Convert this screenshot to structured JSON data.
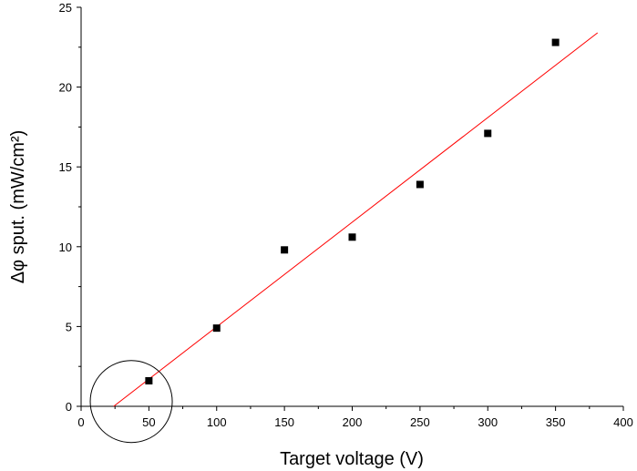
{
  "chart_data": {
    "type": "scatter",
    "xlabel": "Target voltage (V)",
    "ylabel": "Δφ sput. (mW/cm²)",
    "xlim": [
      0,
      400
    ],
    "ylim": [
      0,
      25
    ],
    "x_ticks": [
      0,
      50,
      100,
      150,
      200,
      250,
      300,
      350,
      400
    ],
    "y_ticks": [
      0,
      5,
      10,
      15,
      20,
      25
    ],
    "grid": false,
    "series": [
      {
        "kind": "points",
        "marker": "square",
        "color": "#000000",
        "x": [
          50,
          100,
          150,
          200,
          250,
          300,
          350
        ],
        "y": [
          1.6,
          4.9,
          9.8,
          10.6,
          13.9,
          17.1,
          22.8
        ]
      },
      {
        "kind": "fit-line",
        "color": "#ff0000",
        "x": [
          24,
          381
        ],
        "y": [
          0,
          23.4
        ]
      }
    ],
    "annotations": [
      {
        "kind": "circle",
        "cx": 37,
        "cy": 0.3,
        "color": "#000000",
        "note": "circled low-voltage point"
      }
    ]
  }
}
